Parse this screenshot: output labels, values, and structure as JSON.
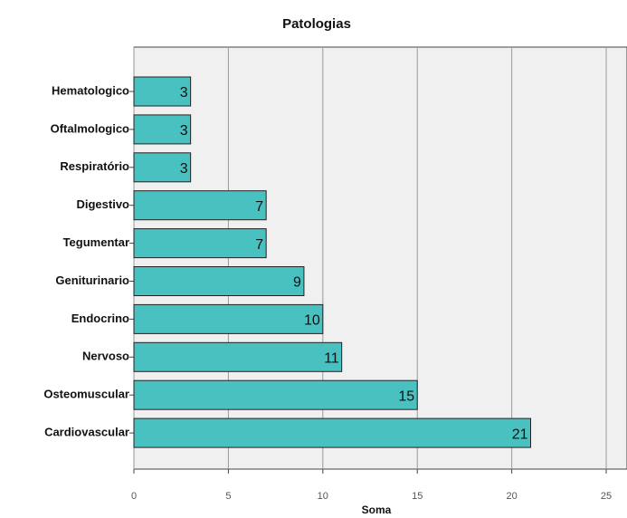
{
  "chart_data": {
    "type": "bar",
    "orientation": "horizontal",
    "title": "Patologias",
    "xlabel": "Soma",
    "categories": [
      "Hematologico",
      "Oftalmologico",
      "Respiratório",
      "Digestivo",
      "Tegumentar",
      "Geniturinario",
      "Endocrino",
      "Nervoso",
      "Osteomuscular",
      "Cardiovascular"
    ],
    "values": [
      3,
      3,
      3,
      7,
      7,
      9,
      10,
      11,
      15,
      21
    ],
    "color": "#49c1c1",
    "xlim": [
      0,
      26.1
    ],
    "xticks": [
      0,
      5,
      10,
      15,
      20,
      25
    ],
    "grid": true
  }
}
